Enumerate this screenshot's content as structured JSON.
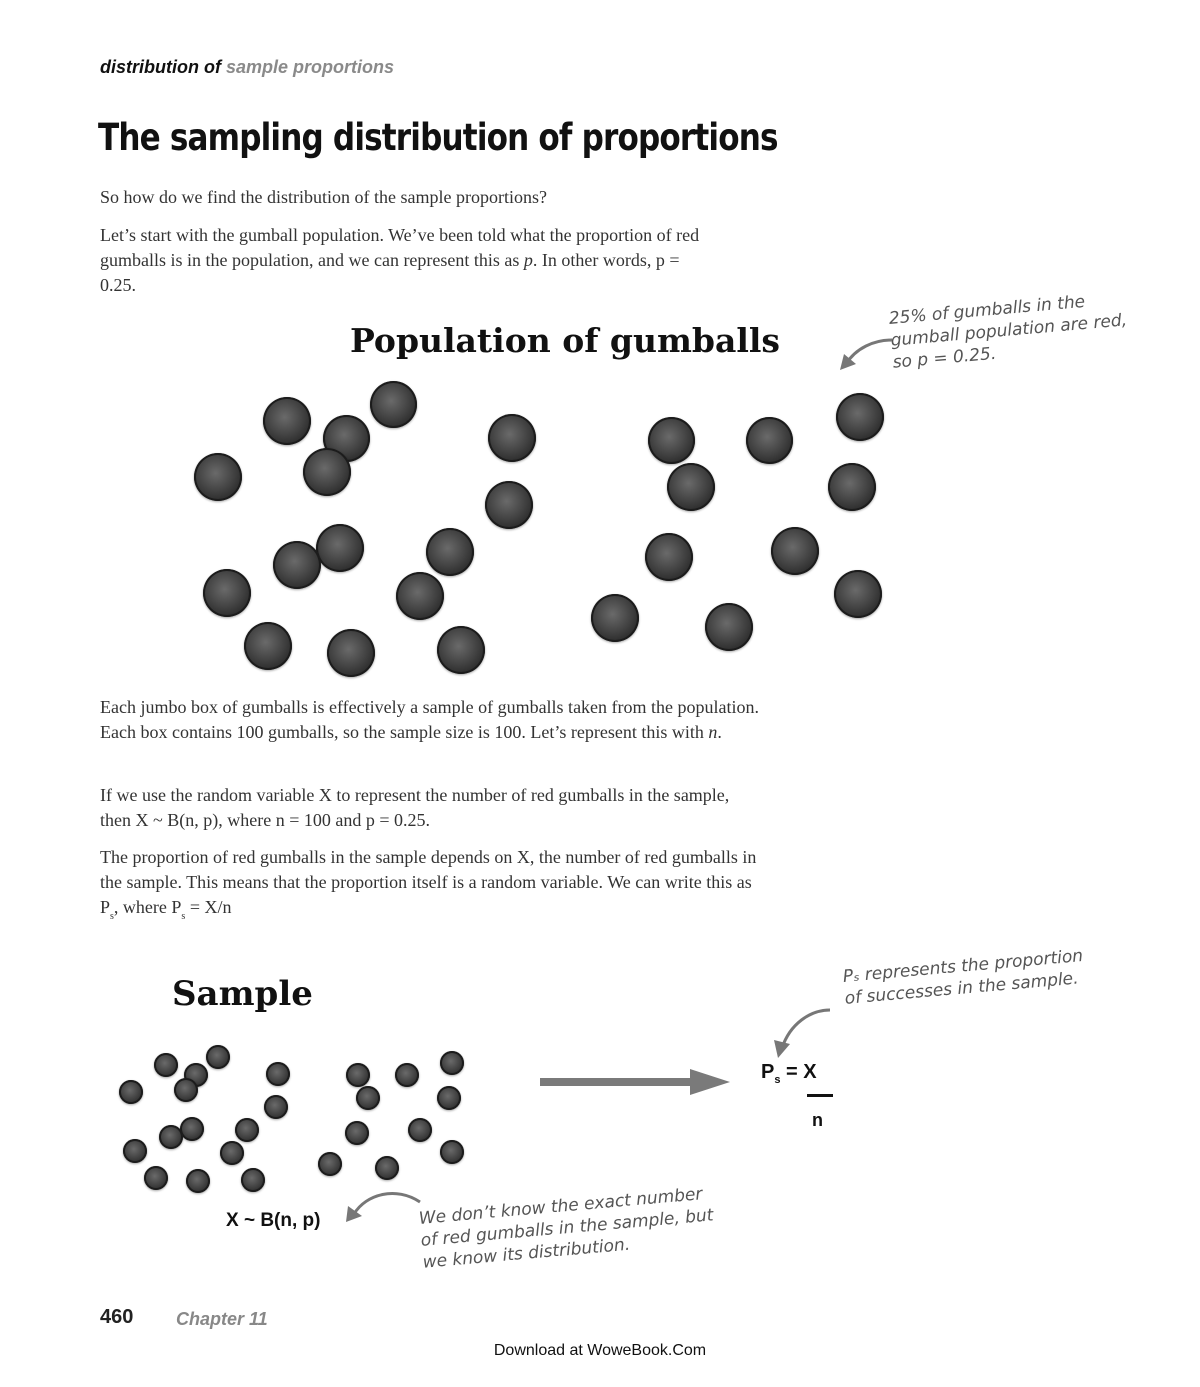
{
  "running_head": {
    "prefix": "distribution of",
    "topic": "sample proportions"
  },
  "title": "The sampling distribution of proportions",
  "intro": {
    "question": "So how do we find the distribution of the sample proportions?",
    "p1_a": "Let’s start with the gumball population. We’ve been told what the proportion of red gumballs is in the population, and we can represent this as ",
    "p1_var": "p",
    "p1_b": ". In other words, p = 0.25."
  },
  "population_figure": {
    "title": "Population of gumballs",
    "note_lines": [
      "25% of gumballs in the",
      "gumball population are red,",
      "so p = 0.25."
    ]
  },
  "body": {
    "p2_a": "Each jumbo box of gumballs is effectively a sample of gumballs taken from the population. Each box contains 100 gumballs, so the sample size is 100. Let’s represent this with ",
    "p2_var": "n",
    "p2_b": ".",
    "p3": "If we use the random variable X to represent the number of red gumballs in the sample, then X ~ B(n, p), where n = 100 and p = 0.25.",
    "p4_a": "The proportion of red gumballs in the sample depends on X, the number of red gumballs in the sample. This means that the proportion itself is a random variable. We can write this as P",
    "p4_sub1": "s",
    "p4_b": ", where P",
    "p4_sub2": "s",
    "p4_c": " = X/n"
  },
  "sample_figure": {
    "title": "Sample",
    "distribution_label": "X ~ B(n, p)",
    "formula": {
      "lhs": "P",
      "lhs_sub": "s",
      "equals": "=",
      "numerator": "X",
      "denominator": "n"
    },
    "note_top_lines": [
      "Pₛ represents the proportion",
      "of successes in the sample."
    ],
    "note_bottom_lines": [
      "We don’t know the exact number",
      "of red gumballs in the sample, but",
      "we know its distribution."
    ]
  },
  "footer": {
    "page_number": "460",
    "chapter": "Chapter 11",
    "watermark": "Download at WoweBook.Com"
  }
}
